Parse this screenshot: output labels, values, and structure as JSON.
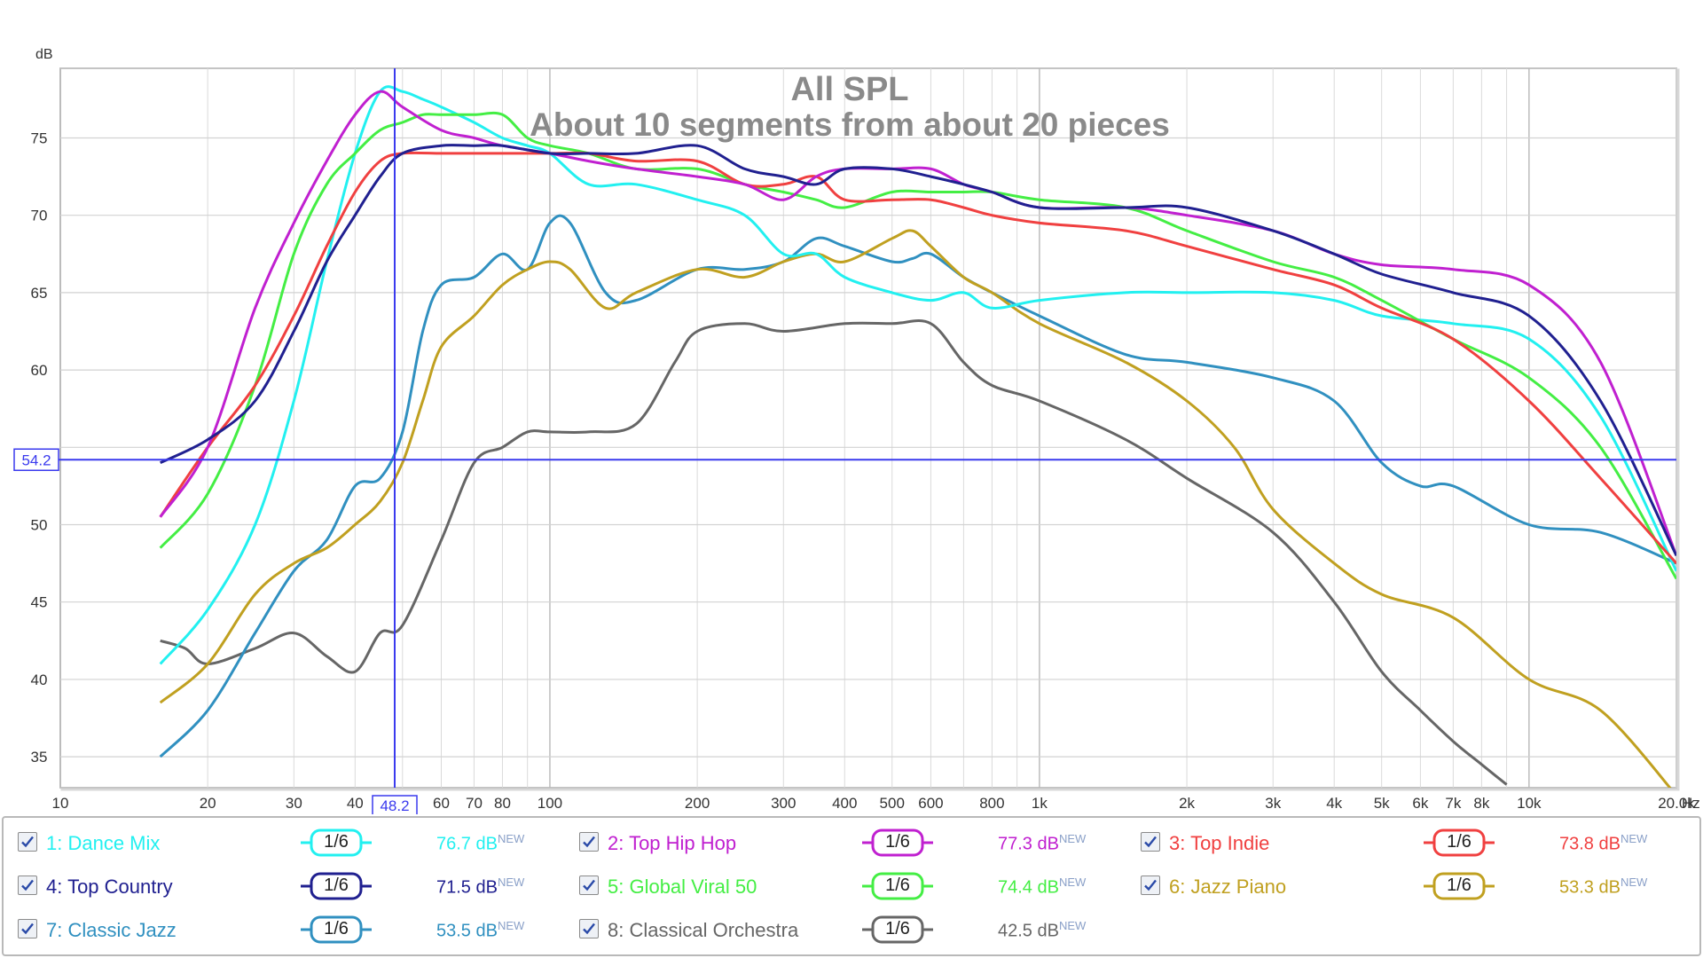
{
  "chart_data": {
    "type": "line",
    "title": "All SPL",
    "subtitle": "About 10 segments from about 20 pieces",
    "ylabel": "dB",
    "xunit": "Hz",
    "xscale": "log",
    "xlim": [
      10,
      20000
    ],
    "ylim": [
      33,
      79.5
    ],
    "grid": true,
    "x_ticks": [
      {
        "v": 10,
        "t": "10"
      },
      {
        "v": 20,
        "t": "20"
      },
      {
        "v": 30,
        "t": "30"
      },
      {
        "v": 40,
        "t": "40"
      },
      {
        "v": 60,
        "t": "60"
      },
      {
        "v": 70,
        "t": "70"
      },
      {
        "v": 80,
        "t": "80"
      },
      {
        "v": 100,
        "t": "100"
      },
      {
        "v": 200,
        "t": "200"
      },
      {
        "v": 300,
        "t": "300"
      },
      {
        "v": 400,
        "t": "400"
      },
      {
        "v": 500,
        "t": "500"
      },
      {
        "v": 600,
        "t": "600"
      },
      {
        "v": 800,
        "t": "800"
      },
      {
        "v": 1000,
        "t": "1k"
      },
      {
        "v": 2000,
        "t": "2k"
      },
      {
        "v": 3000,
        "t": "3k"
      },
      {
        "v": 4000,
        "t": "4k"
      },
      {
        "v": 5000,
        "t": "5k"
      },
      {
        "v": 6000,
        "t": "6k"
      },
      {
        "v": 7000,
        "t": "7k"
      },
      {
        "v": 8000,
        "t": "8k"
      },
      {
        "v": 10000,
        "t": "10k"
      },
      {
        "v": 20000,
        "t": "20.0k"
      }
    ],
    "y_ticks": [
      35,
      40,
      45,
      50,
      60,
      65,
      70,
      75
    ],
    "cursor": {
      "x": 48.2,
      "y": 54.2,
      "x_label": "48.2",
      "y_label": "54.2"
    },
    "series": [
      {
        "name": "1: Dance Mix",
        "color": "#22f0f0",
        "smoothing": "1/6",
        "level": "76.7 dB",
        "tag": "NEW",
        "x": [
          16,
          20,
          25,
          30,
          35,
          40,
          45,
          50,
          55,
          60,
          70,
          80,
          90,
          100,
          120,
          150,
          200,
          250,
          300,
          350,
          400,
          500,
          600,
          700,
          800,
          1000,
          1500,
          2000,
          3000,
          4000,
          5000,
          7000,
          10000,
          14000,
          20000
        ],
        "y": [
          41,
          44.5,
          50,
          58,
          67,
          74,
          78,
          78,
          77.5,
          77,
          76,
          75,
          74.5,
          74,
          72,
          72,
          71,
          70,
          67.5,
          67.5,
          66,
          65,
          64.5,
          65,
          64,
          64.5,
          65,
          65,
          65,
          64.5,
          63.5,
          63,
          62,
          57,
          47
        ]
      },
      {
        "name": "2: Top Hip Hop",
        "color": "#c020d0",
        "smoothing": "1/6",
        "level": "77.3 dB",
        "tag": "NEW",
        "x": [
          16,
          20,
          25,
          30,
          35,
          40,
          45,
          50,
          60,
          70,
          80,
          100,
          120,
          150,
          200,
          250,
          300,
          350,
          400,
          500,
          600,
          700,
          800,
          1000,
          1500,
          2000,
          3000,
          4000,
          5000,
          7000,
          10000,
          14000,
          20000
        ],
        "y": [
          50.5,
          55,
          64,
          69.5,
          73.5,
          76.5,
          78,
          77,
          75.5,
          75,
          74.5,
          74,
          73.5,
          73,
          72.5,
          72,
          71,
          72.5,
          73,
          73,
          73,
          72,
          71.5,
          70.5,
          70.5,
          70,
          69,
          67.5,
          66.8,
          66.5,
          65.5,
          60.5,
          48
        ]
      },
      {
        "name": "3: Top Indie",
        "color": "#f04040",
        "smoothing": "1/6",
        "level": "73.8 dB",
        "tag": "NEW",
        "x": [
          16,
          20,
          25,
          30,
          35,
          40,
          45,
          50,
          60,
          70,
          80,
          100,
          120,
          150,
          200,
          250,
          300,
          350,
          400,
          500,
          600,
          700,
          800,
          1000,
          1500,
          2000,
          3000,
          4000,
          5000,
          7000,
          10000,
          14000,
          20000
        ],
        "y": [
          50.5,
          55,
          59,
          63.5,
          68,
          71.5,
          73.5,
          74,
          74,
          74,
          74,
          74,
          74,
          73.5,
          73.5,
          72,
          72,
          72.5,
          71,
          71,
          71,
          70.5,
          70,
          69.5,
          69,
          68,
          66.5,
          65.5,
          64,
          62,
          58,
          53,
          47.5
        ]
      },
      {
        "name": "4: Top Country",
        "color": "#202090",
        "smoothing": "1/6",
        "level": "71.5 dB",
        "tag": "NEW",
        "x": [
          16,
          20,
          25,
          30,
          35,
          40,
          45,
          50,
          60,
          70,
          80,
          100,
          120,
          150,
          200,
          250,
          300,
          350,
          400,
          500,
          600,
          700,
          800,
          1000,
          1500,
          2000,
          3000,
          4000,
          5000,
          7000,
          10000,
          14000,
          20000
        ],
        "y": [
          54,
          55.5,
          58,
          62.5,
          67,
          70,
          72.5,
          74,
          74.5,
          74.5,
          74.5,
          74,
          74,
          74,
          74.5,
          73,
          72.5,
          72,
          73,
          73,
          72.5,
          72,
          71.5,
          70.5,
          70.5,
          70.5,
          69,
          67.5,
          66.2,
          65,
          63.5,
          58,
          48
        ]
      },
      {
        "name": "5: Global Viral 50",
        "color": "#44ee44",
        "smoothing": "1/6",
        "level": "74.4 dB",
        "tag": "NEW",
        "x": [
          16,
          20,
          25,
          30,
          35,
          40,
          45,
          50,
          55,
          60,
          70,
          80,
          90,
          100,
          120,
          150,
          200,
          250,
          300,
          350,
          400,
          500,
          600,
          700,
          800,
          1000,
          1500,
          2000,
          3000,
          4000,
          5000,
          7000,
          10000,
          14000,
          20000
        ],
        "y": [
          48.5,
          52,
          59,
          67.5,
          72,
          74,
          75.5,
          76,
          76.5,
          76.5,
          76.5,
          76.5,
          75,
          74.5,
          74,
          73,
          73,
          72,
          71.5,
          71,
          70.5,
          71.5,
          71.5,
          71.5,
          71.5,
          71,
          70.5,
          69,
          67,
          66,
          64.5,
          62,
          59.5,
          55,
          46.5
        ]
      },
      {
        "name": "6: Jazz Piano",
        "color": "#c0a020",
        "smoothing": "1/6",
        "level": "53.3 dB",
        "tag": "NEW",
        "x": [
          16,
          20,
          25,
          30,
          35,
          40,
          45,
          50,
          55,
          60,
          70,
          80,
          90,
          100,
          110,
          130,
          150,
          200,
          250,
          300,
          350,
          400,
          500,
          550,
          600,
          700,
          800,
          1000,
          1500,
          2000,
          2500,
          3000,
          4000,
          5000,
          7000,
          10000,
          14000,
          20000
        ],
        "y": [
          38.5,
          41,
          45.5,
          47.5,
          48.5,
          50,
          51.5,
          54,
          58,
          61.5,
          63.5,
          65.5,
          66.5,
          67,
          66.5,
          64,
          65,
          66.5,
          66,
          67,
          67.5,
          67,
          68.5,
          69,
          68,
          66,
          65,
          63,
          60.5,
          58,
          55,
          51,
          47.5,
          45.5,
          44,
          40,
          38,
          32.5
        ]
      },
      {
        "name": "7: Classic Jazz",
        "color": "#3090c0",
        "smoothing": "1/6",
        "level": "53.5 dB",
        "tag": "NEW",
        "x": [
          16,
          20,
          25,
          30,
          35,
          40,
          45,
          50,
          55,
          60,
          70,
          80,
          90,
          100,
          110,
          130,
          150,
          200,
          250,
          300,
          350,
          400,
          500,
          550,
          600,
          700,
          800,
          1000,
          1500,
          2000,
          3000,
          4000,
          5000,
          6000,
          7000,
          10000,
          14000,
          20000
        ],
        "y": [
          35,
          38,
          43,
          47,
          49,
          52.5,
          53,
          56,
          62.5,
          65.5,
          66,
          67.5,
          66.5,
          69.5,
          69.5,
          65,
          64.5,
          66.5,
          66.5,
          67,
          68.5,
          68,
          67,
          67.2,
          67.5,
          66,
          65,
          63.5,
          61,
          60.5,
          59.5,
          58,
          54,
          52.5,
          52.5,
          50,
          49.5,
          47.5
        ]
      },
      {
        "name": "8: Classical Orchestra",
        "color": "#666666",
        "smoothing": "1/6",
        "level": "42.5 dB",
        "tag": "NEW",
        "x": [
          16,
          18,
          20,
          25,
          30,
          35,
          40,
          45,
          50,
          60,
          70,
          80,
          90,
          100,
          120,
          150,
          180,
          200,
          250,
          300,
          400,
          500,
          600,
          700,
          800,
          1000,
          1500,
          2000,
          3000,
          4000,
          5000,
          6000,
          7000,
          8000,
          9000
        ],
        "y": [
          42.5,
          42,
          41,
          42,
          43,
          41.5,
          40.5,
          43,
          43.5,
          49,
          54,
          55,
          56,
          56,
          56,
          56.5,
          60.5,
          62.5,
          63,
          62.5,
          63,
          63,
          63,
          60.5,
          59,
          58,
          55.5,
          53,
          49.5,
          45,
          40.5,
          38,
          36,
          34.5,
          33.2
        ]
      }
    ]
  },
  "legend": {
    "items": [
      {
        "name": "1: Dance Mix",
        "smoothing": "1/6",
        "level": "76.7 dB",
        "tag": "NEW"
      },
      {
        "name": "2: Top Hip Hop",
        "smoothing": "1/6",
        "level": "77.3 dB",
        "tag": "NEW"
      },
      {
        "name": "3: Top Indie",
        "smoothing": "1/6",
        "level": "73.8 dB",
        "tag": "NEW"
      },
      {
        "name": "4: Top Country",
        "smoothing": "1/6",
        "level": "71.5 dB",
        "tag": "NEW"
      },
      {
        "name": "5: Global Viral 50",
        "smoothing": "1/6",
        "level": "74.4 dB",
        "tag": "NEW"
      },
      {
        "name": "6: Jazz Piano",
        "smoothing": "1/6",
        "level": "53.3 dB",
        "tag": "NEW"
      },
      {
        "name": "7: Classic Jazz",
        "smoothing": "1/6",
        "level": "53.5 dB",
        "tag": "NEW"
      },
      {
        "name": "8: Classical Orchestra",
        "smoothing": "1/6",
        "level": "42.5 dB",
        "tag": "NEW"
      }
    ]
  }
}
